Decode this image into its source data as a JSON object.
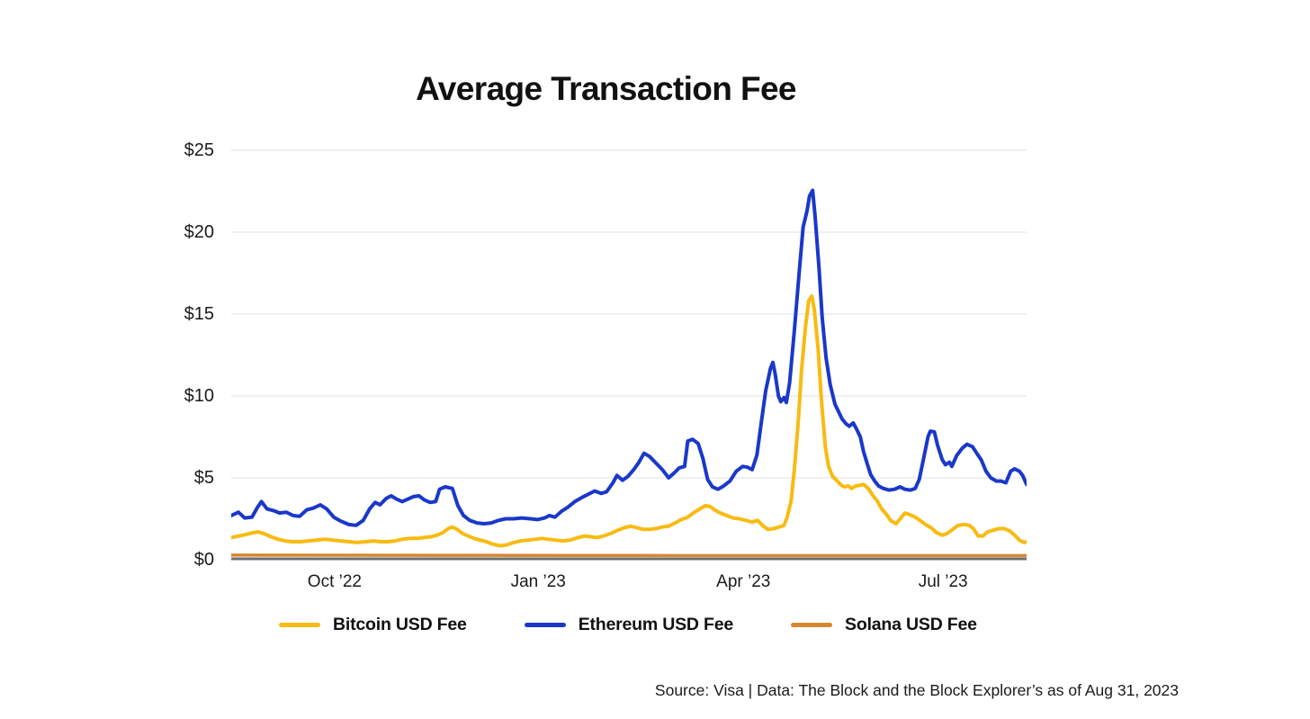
{
  "page": {
    "background": "#ffffff"
  },
  "chart_data": {
    "type": "line",
    "title": "Average Transaction Fee",
    "source_note": "Source: Visa | Data: The Block and the Block Explorer’s as of Aug 31, 2023",
    "x_axis": {
      "tick_labels": [
        "Oct ’22",
        "Jan ’23",
        "Apr ’23",
        "Jul ’23"
      ],
      "tick_positions": [
        0.13,
        0.386,
        0.644,
        0.895
      ]
    },
    "y_axis": {
      "tick_labels": [
        "$0",
        "$5",
        "$10",
        "$15",
        "$20",
        "$25"
      ],
      "tick_values": [
        0,
        5,
        10,
        15,
        20,
        25
      ],
      "ylim": [
        0,
        25.7
      ],
      "unit": "USD"
    },
    "grid": "horizontal",
    "legend_position": "bottom",
    "colors": {
      "bitcoin": "#F8BB12",
      "ethereum": "#1A38C9",
      "solana": "#D6882F",
      "axis_line": "#6D6E71",
      "gridline": "#EBEBEB",
      "text": "#1A1A1A"
    },
    "series": [
      {
        "name": "Bitcoin USD Fee",
        "color": "#F8BB12",
        "points": [
          [
            0.0,
            1.35
          ],
          [
            0.01,
            1.45
          ],
          [
            0.019,
            1.55
          ],
          [
            0.027,
            1.65
          ],
          [
            0.034,
            1.7
          ],
          [
            0.041,
            1.6
          ],
          [
            0.05,
            1.4
          ],
          [
            0.059,
            1.25
          ],
          [
            0.068,
            1.15
          ],
          [
            0.077,
            1.1
          ],
          [
            0.087,
            1.1
          ],
          [
            0.097,
            1.15
          ],
          [
            0.107,
            1.2
          ],
          [
            0.118,
            1.25
          ],
          [
            0.128,
            1.2
          ],
          [
            0.138,
            1.15
          ],
          [
            0.148,
            1.1
          ],
          [
            0.158,
            1.05
          ],
          [
            0.169,
            1.1
          ],
          [
            0.179,
            1.15
          ],
          [
            0.188,
            1.1
          ],
          [
            0.197,
            1.1
          ],
          [
            0.206,
            1.15
          ],
          [
            0.215,
            1.25
          ],
          [
            0.224,
            1.3
          ],
          [
            0.233,
            1.3
          ],
          [
            0.242,
            1.35
          ],
          [
            0.251,
            1.4
          ],
          [
            0.259,
            1.5
          ],
          [
            0.266,
            1.65
          ],
          [
            0.273,
            1.9
          ],
          [
            0.278,
            2.0
          ],
          [
            0.284,
            1.85
          ],
          [
            0.291,
            1.6
          ],
          [
            0.298,
            1.45
          ],
          [
            0.305,
            1.3
          ],
          [
            0.313,
            1.2
          ],
          [
            0.321,
            1.1
          ],
          [
            0.329,
            0.95
          ],
          [
            0.338,
            0.85
          ],
          [
            0.346,
            0.9
          ],
          [
            0.355,
            1.05
          ],
          [
            0.364,
            1.15
          ],
          [
            0.373,
            1.2
          ],
          [
            0.382,
            1.25
          ],
          [
            0.391,
            1.3
          ],
          [
            0.399,
            1.25
          ],
          [
            0.408,
            1.2
          ],
          [
            0.417,
            1.15
          ],
          [
            0.426,
            1.2
          ],
          [
            0.436,
            1.35
          ],
          [
            0.445,
            1.45
          ],
          [
            0.452,
            1.4
          ],
          [
            0.46,
            1.35
          ],
          [
            0.468,
            1.45
          ],
          [
            0.477,
            1.6
          ],
          [
            0.486,
            1.8
          ],
          [
            0.494,
            1.95
          ],
          [
            0.502,
            2.05
          ],
          [
            0.51,
            1.95
          ],
          [
            0.518,
            1.85
          ],
          [
            0.526,
            1.85
          ],
          [
            0.534,
            1.9
          ],
          [
            0.542,
            2.0
          ],
          [
            0.55,
            2.05
          ],
          [
            0.558,
            2.25
          ],
          [
            0.566,
            2.45
          ],
          [
            0.574,
            2.6
          ],
          [
            0.581,
            2.85
          ],
          [
            0.589,
            3.1
          ],
          [
            0.596,
            3.3
          ],
          [
            0.602,
            3.25
          ],
          [
            0.609,
            3.0
          ],
          [
            0.615,
            2.85
          ],
          [
            0.623,
            2.7
          ],
          [
            0.631,
            2.55
          ],
          [
            0.639,
            2.5
          ],
          [
            0.647,
            2.4
          ],
          [
            0.655,
            2.3
          ],
          [
            0.662,
            2.4
          ],
          [
            0.669,
            2.05
          ],
          [
            0.675,
            1.85
          ],
          [
            0.682,
            1.9
          ],
          [
            0.689,
            2.0
          ],
          [
            0.695,
            2.1
          ],
          [
            0.699,
            2.6
          ],
          [
            0.704,
            3.6
          ],
          [
            0.708,
            5.5
          ],
          [
            0.713,
            8.5
          ],
          [
            0.717,
            11.5
          ],
          [
            0.722,
            14.2
          ],
          [
            0.726,
            15.8
          ],
          [
            0.73,
            16.1
          ],
          [
            0.733,
            15.3
          ],
          [
            0.738,
            12.8
          ],
          [
            0.742,
            9.8
          ],
          [
            0.747,
            6.9
          ],
          [
            0.751,
            5.7
          ],
          [
            0.756,
            5.1
          ],
          [
            0.761,
            4.85
          ],
          [
            0.767,
            4.55
          ],
          [
            0.771,
            4.45
          ],
          [
            0.776,
            4.5
          ],
          [
            0.78,
            4.35
          ],
          [
            0.785,
            4.5
          ],
          [
            0.791,
            4.55
          ],
          [
            0.795,
            4.6
          ],
          [
            0.801,
            4.35
          ],
          [
            0.807,
            3.9
          ],
          [
            0.812,
            3.6
          ],
          [
            0.818,
            3.1
          ],
          [
            0.824,
            2.75
          ],
          [
            0.829,
            2.4
          ],
          [
            0.836,
            2.2
          ],
          [
            0.842,
            2.55
          ],
          [
            0.847,
            2.85
          ],
          [
            0.853,
            2.75
          ],
          [
            0.86,
            2.6
          ],
          [
            0.866,
            2.4
          ],
          [
            0.873,
            2.15
          ],
          [
            0.88,
            1.95
          ],
          [
            0.887,
            1.65
          ],
          [
            0.894,
            1.5
          ],
          [
            0.9,
            1.6
          ],
          [
            0.907,
            1.85
          ],
          [
            0.914,
            2.1
          ],
          [
            0.921,
            2.15
          ],
          [
            0.928,
            2.1
          ],
          [
            0.933,
            1.9
          ],
          [
            0.939,
            1.45
          ],
          [
            0.945,
            1.45
          ],
          [
            0.951,
            1.7
          ],
          [
            0.958,
            1.8
          ],
          [
            0.965,
            1.9
          ],
          [
            0.972,
            1.9
          ],
          [
            0.979,
            1.75
          ],
          [
            0.985,
            1.5
          ],
          [
            0.991,
            1.2
          ],
          [
            0.997,
            1.05
          ],
          [
            1.0,
            1.1
          ]
        ]
      },
      {
        "name": "Ethereum USD Fee",
        "color": "#1A38C9",
        "points": [
          [
            0.0,
            2.7
          ],
          [
            0.009,
            2.9
          ],
          [
            0.017,
            2.55
          ],
          [
            0.026,
            2.6
          ],
          [
            0.033,
            3.2
          ],
          [
            0.038,
            3.55
          ],
          [
            0.045,
            3.1
          ],
          [
            0.053,
            3.0
          ],
          [
            0.061,
            2.85
          ],
          [
            0.069,
            2.9
          ],
          [
            0.078,
            2.7
          ],
          [
            0.086,
            2.65
          ],
          [
            0.095,
            3.05
          ],
          [
            0.103,
            3.15
          ],
          [
            0.112,
            3.35
          ],
          [
            0.12,
            3.1
          ],
          [
            0.129,
            2.6
          ],
          [
            0.138,
            2.35
          ],
          [
            0.148,
            2.15
          ],
          [
            0.157,
            2.1
          ],
          [
            0.166,
            2.4
          ],
          [
            0.174,
            3.1
          ],
          [
            0.181,
            3.5
          ],
          [
            0.187,
            3.35
          ],
          [
            0.195,
            3.75
          ],
          [
            0.201,
            3.9
          ],
          [
            0.208,
            3.7
          ],
          [
            0.215,
            3.55
          ],
          [
            0.222,
            3.7
          ],
          [
            0.229,
            3.85
          ],
          [
            0.236,
            3.9
          ],
          [
            0.243,
            3.65
          ],
          [
            0.25,
            3.5
          ],
          [
            0.257,
            3.55
          ],
          [
            0.262,
            4.3
          ],
          [
            0.269,
            4.45
          ],
          [
            0.278,
            4.35
          ],
          [
            0.285,
            3.3
          ],
          [
            0.292,
            2.7
          ],
          [
            0.3,
            2.4
          ],
          [
            0.309,
            2.25
          ],
          [
            0.318,
            2.2
          ],
          [
            0.327,
            2.25
          ],
          [
            0.336,
            2.4
          ],
          [
            0.345,
            2.5
          ],
          [
            0.355,
            2.5
          ],
          [
            0.365,
            2.55
          ],
          [
            0.376,
            2.5
          ],
          [
            0.385,
            2.45
          ],
          [
            0.394,
            2.55
          ],
          [
            0.4,
            2.7
          ],
          [
            0.407,
            2.6
          ],
          [
            0.415,
            2.95
          ],
          [
            0.423,
            3.2
          ],
          [
            0.432,
            3.55
          ],
          [
            0.441,
            3.8
          ],
          [
            0.449,
            4.0
          ],
          [
            0.457,
            4.2
          ],
          [
            0.465,
            4.05
          ],
          [
            0.472,
            4.15
          ],
          [
            0.48,
            4.7
          ],
          [
            0.485,
            5.15
          ],
          [
            0.492,
            4.85
          ],
          [
            0.499,
            5.1
          ],
          [
            0.506,
            5.5
          ],
          [
            0.512,
            5.9
          ],
          [
            0.519,
            6.5
          ],
          [
            0.526,
            6.3
          ],
          [
            0.534,
            5.9
          ],
          [
            0.542,
            5.5
          ],
          [
            0.55,
            5.0
          ],
          [
            0.557,
            5.3
          ],
          [
            0.563,
            5.6
          ],
          [
            0.57,
            5.7
          ],
          [
            0.574,
            7.25
          ],
          [
            0.58,
            7.35
          ],
          [
            0.587,
            7.1
          ],
          [
            0.593,
            6.2
          ],
          [
            0.599,
            4.9
          ],
          [
            0.605,
            4.45
          ],
          [
            0.612,
            4.3
          ],
          [
            0.619,
            4.5
          ],
          [
            0.627,
            4.8
          ],
          [
            0.635,
            5.4
          ],
          [
            0.643,
            5.7
          ],
          [
            0.649,
            5.65
          ],
          [
            0.655,
            5.5
          ],
          [
            0.661,
            6.4
          ],
          [
            0.666,
            8.2
          ],
          [
            0.672,
            10.3
          ],
          [
            0.678,
            11.7
          ],
          [
            0.681,
            12.05
          ],
          [
            0.684,
            11.3
          ],
          [
            0.688,
            10.0
          ],
          [
            0.691,
            9.65
          ],
          [
            0.695,
            9.9
          ],
          [
            0.698,
            9.6
          ],
          [
            0.702,
            10.8
          ],
          [
            0.708,
            14.0
          ],
          [
            0.714,
            17.5
          ],
          [
            0.719,
            20.3
          ],
          [
            0.724,
            21.3
          ],
          [
            0.727,
            22.2
          ],
          [
            0.731,
            22.55
          ],
          [
            0.734,
            21.0
          ],
          [
            0.739,
            17.8
          ],
          [
            0.743,
            14.8
          ],
          [
            0.748,
            12.3
          ],
          [
            0.753,
            10.7
          ],
          [
            0.759,
            9.5
          ],
          [
            0.764,
            9.0
          ],
          [
            0.768,
            8.6
          ],
          [
            0.773,
            8.3
          ],
          [
            0.777,
            8.15
          ],
          [
            0.782,
            8.35
          ],
          [
            0.786,
            8.0
          ],
          [
            0.791,
            7.5
          ],
          [
            0.795,
            6.6
          ],
          [
            0.8,
            5.8
          ],
          [
            0.804,
            5.2
          ],
          [
            0.809,
            4.8
          ],
          [
            0.814,
            4.5
          ],
          [
            0.82,
            4.35
          ],
          [
            0.827,
            4.25
          ],
          [
            0.834,
            4.3
          ],
          [
            0.841,
            4.45
          ],
          [
            0.847,
            4.3
          ],
          [
            0.854,
            4.25
          ],
          [
            0.86,
            4.35
          ],
          [
            0.865,
            4.9
          ],
          [
            0.871,
            6.3
          ],
          [
            0.876,
            7.5
          ],
          [
            0.879,
            7.85
          ],
          [
            0.884,
            7.8
          ],
          [
            0.888,
            7.0
          ],
          [
            0.894,
            6.1
          ],
          [
            0.898,
            5.8
          ],
          [
            0.903,
            5.95
          ],
          [
            0.906,
            5.7
          ],
          [
            0.912,
            6.35
          ],
          [
            0.919,
            6.8
          ],
          [
            0.925,
            7.05
          ],
          [
            0.932,
            6.9
          ],
          [
            0.938,
            6.45
          ],
          [
            0.943,
            6.1
          ],
          [
            0.949,
            5.4
          ],
          [
            0.955,
            5.0
          ],
          [
            0.962,
            4.8
          ],
          [
            0.968,
            4.8
          ],
          [
            0.974,
            4.7
          ],
          [
            0.98,
            5.4
          ],
          [
            0.985,
            5.55
          ],
          [
            0.991,
            5.4
          ],
          [
            0.995,
            5.15
          ],
          [
            1.0,
            4.6
          ]
        ]
      },
      {
        "name": "Solana USD Fee",
        "color": "#D6882F",
        "points": [
          [
            0.0,
            0.28
          ],
          [
            0.25,
            0.27
          ],
          [
            0.5,
            0.26
          ],
          [
            0.75,
            0.25
          ],
          [
            1.0,
            0.25
          ]
        ]
      }
    ]
  }
}
